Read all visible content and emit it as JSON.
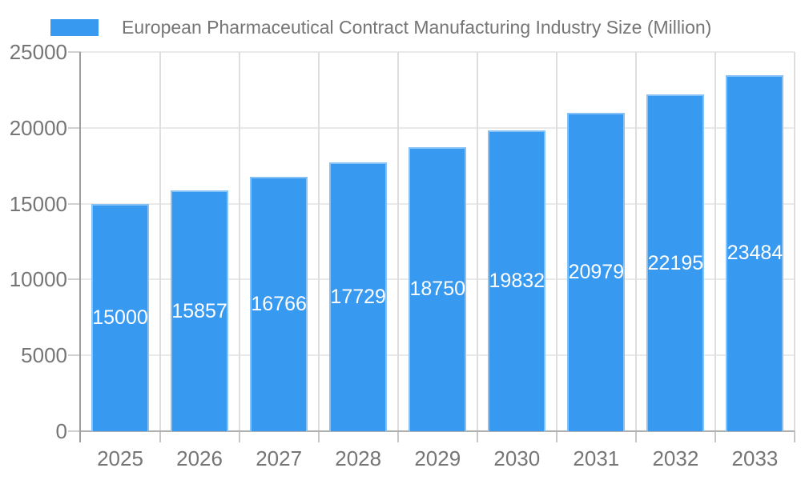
{
  "chart_data": {
    "type": "bar",
    "title": "European Pharmaceutical Contract Manufacturing Industry Size (Million)",
    "categories": [
      "2025",
      "2026",
      "2027",
      "2028",
      "2029",
      "2030",
      "2031",
      "2032",
      "2033"
    ],
    "series": [
      {
        "name": "European Pharmaceutical Contract Manufacturing Industry Size (Million)",
        "color": "#3899f0",
        "values": [
          15000,
          15857,
          16766,
          17729,
          18750,
          19832,
          20979,
          22195,
          23484
        ]
      }
    ],
    "value_labels": [
      "15000",
      "15857",
      "16766",
      "17729",
      "18750",
      "19832",
      "20979",
      "22195",
      "23484"
    ],
    "value_label_position": "center",
    "value_label_color": "#ffffff",
    "xlabel": "",
    "ylabel": "",
    "ylim": [
      0,
      25000
    ],
    "yticks": [
      0,
      5000,
      10000,
      15000,
      20000,
      25000
    ],
    "grid": true,
    "legend_position": "top-left",
    "axis_text_color": "#757575",
    "background_color": "#ffffff"
  }
}
